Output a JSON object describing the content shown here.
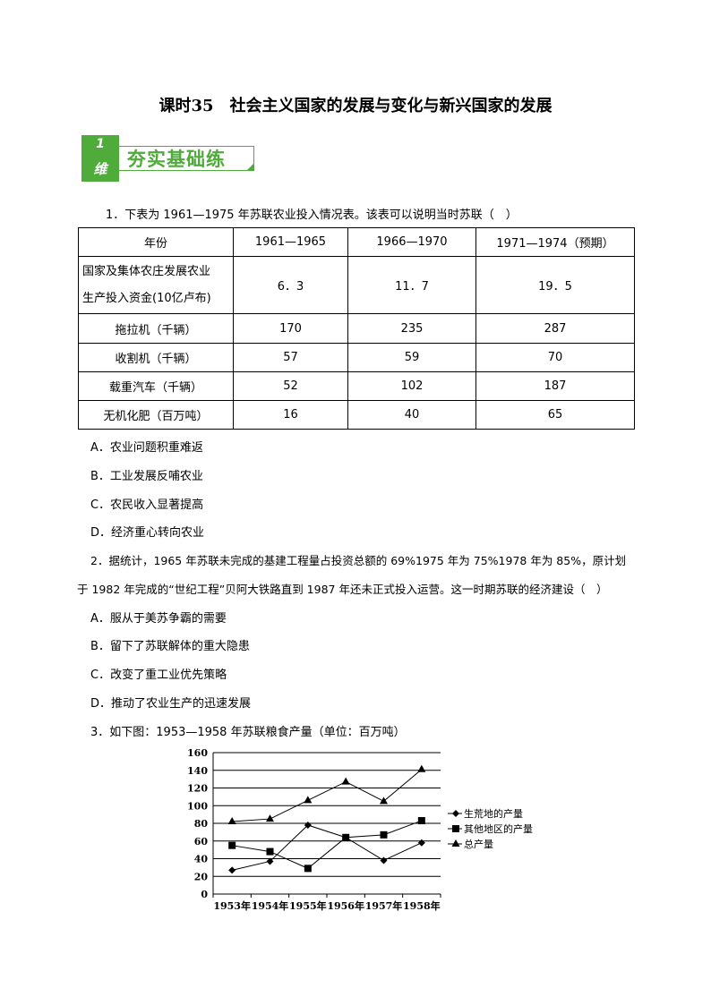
{
  "title": "课时35　社会主义国家的发展与变化与新兴国家的发展",
  "badge": {
    "number": "1",
    "suffix": "维",
    "label": "夯实基础练",
    "color": "#4fab3a"
  },
  "q1": {
    "stem": "1．下表为 1961—1975 年苏联农业投入情况表。该表可以说明当时苏联（　）",
    "table": {
      "headers": [
        "年份",
        "1961—1965",
        "1966—1970",
        "1971—1974（预期）"
      ],
      "rows": [
        {
          "label_line1": "国家及集体农庄发展农业",
          "label_line2": "生产投入资金(10亿卢布)",
          "values": [
            "6．3",
            "11．7",
            "19．5"
          ]
        },
        {
          "label": "拖拉机（千辆）",
          "values": [
            "170",
            "235",
            "287"
          ]
        },
        {
          "label": "收割机（千辆）",
          "values": [
            "57",
            "59",
            "70"
          ]
        },
        {
          "label": "载重汽车（千辆）",
          "values": [
            "52",
            "102",
            "187"
          ]
        },
        {
          "label": "无机化肥（百万吨）",
          "values": [
            "16",
            "40",
            "65"
          ]
        }
      ]
    },
    "options": [
      "A．农业问题积重难返",
      "B．工业发展反哺农业",
      "C．农民收入显著提高",
      "D．经济重心转向农业"
    ]
  },
  "q2": {
    "line1": "2．据统计，1965 年苏联未完成的基建工程量占投资总额的 69%1975 年为 75%1978 年为 85%，原计划",
    "line2": "于 1982 年完成的“世纪工程”贝阿大铁路直到 1987 年还未正式投入运营。这一时期苏联的经济建设（　）",
    "options": [
      "A．服从于美苏争霸的需要",
      "B．留下了苏联解体的重大隐患",
      "C．改变了重工业优先策略",
      "D．推动了农业生产的迅速发展"
    ]
  },
  "q3": {
    "stem": "3．如下图：1953—1958 年苏联粮食产量（单位：百万吨）"
  },
  "chart_data": {
    "type": "line",
    "categories": [
      "1953年",
      "1954年",
      "1955年",
      "1956年",
      "1957年",
      "1958年"
    ],
    "ylim": [
      0,
      160
    ],
    "yticks": [
      "0",
      "20",
      "40",
      "60",
      "80",
      "100",
      "120",
      "140",
      "160"
    ],
    "grid": "horizontal",
    "legend": "right",
    "series": [
      {
        "name": "生荒地的产量",
        "marker": "diamond",
        "values": [
          27,
          37,
          78,
          64,
          38,
          58
        ]
      },
      {
        "name": "其他地区的产量",
        "marker": "square",
        "values": [
          55,
          48,
          29,
          64,
          67,
          83
        ]
      },
      {
        "name": "总产量",
        "marker": "triangle",
        "values": [
          82,
          85,
          106,
          127,
          105,
          141
        ]
      }
    ]
  }
}
